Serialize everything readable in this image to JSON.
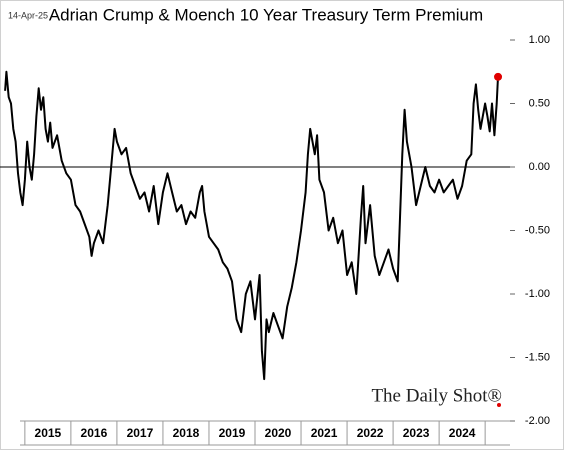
{
  "chart_data": {
    "type": "line",
    "title": "Adrian Crump & Moench 10 Year Treasury Term Premium",
    "date_label": "14-Apr-25",
    "watermark": "The Daily Shot®",
    "categories": [
      "2015",
      "2016",
      "2017",
      "2018",
      "2019",
      "2020",
      "2021",
      "2022",
      "2023",
      "2024"
    ],
    "xlim": [
      2014.46,
      2025.54
    ],
    "ylim": [
      -2,
      1
    ],
    "yticks": [
      {
        "value": 1,
        "label": "1.00"
      },
      {
        "value": 0.5,
        "label": "0.50"
      },
      {
        "value": 0,
        "label": "0.00"
      },
      {
        "value": -0.5,
        "label": "-0.50"
      },
      {
        "value": -1,
        "label": "-1.00"
      },
      {
        "value": -1.5,
        "label": "-1.50"
      },
      {
        "value": -2,
        "label": "-2.00"
      }
    ],
    "marker_color": "#e00000",
    "series": [
      {
        "name": "Term Premium",
        "color": "#000000",
        "x": [
          2014.57,
          2014.6,
          2014.65,
          2014.7,
          2014.75,
          2014.8,
          2014.85,
          2014.9,
          2014.95,
          2015.0,
          2015.05,
          2015.1,
          2015.15,
          2015.2,
          2015.25,
          2015.3,
          2015.35,
          2015.4,
          2015.45,
          2015.5,
          2015.55,
          2015.6,
          2015.7,
          2015.8,
          2015.9,
          2016.0,
          2016.1,
          2016.2,
          2016.3,
          2016.4,
          2016.45,
          2016.5,
          2016.6,
          2016.7,
          2016.8,
          2016.9,
          2016.95,
          2017.0,
          2017.1,
          2017.2,
          2017.3,
          2017.4,
          2017.5,
          2017.6,
          2017.7,
          2017.8,
          2017.9,
          2018.0,
          2018.1,
          2018.2,
          2018.3,
          2018.4,
          2018.5,
          2018.6,
          2018.7,
          2018.8,
          2018.85,
          2018.9,
          2019.0,
          2019.1,
          2019.2,
          2019.3,
          2019.4,
          2019.5,
          2019.6,
          2019.7,
          2019.8,
          2019.9,
          2020.0,
          2020.1,
          2020.15,
          2020.2,
          2020.25,
          2020.3,
          2020.4,
          2020.5,
          2020.6,
          2020.7,
          2020.8,
          2020.9,
          2021.0,
          2021.1,
          2021.15,
          2021.2,
          2021.3,
          2021.35,
          2021.4,
          2021.5,
          2021.6,
          2021.7,
          2021.8,
          2021.9,
          2022.0,
          2022.1,
          2022.2,
          2022.3,
          2022.35,
          2022.4,
          2022.5,
          2022.6,
          2022.7,
          2022.8,
          2022.9,
          2023.0,
          2023.1,
          2023.15,
          2023.2,
          2023.25,
          2023.3,
          2023.4,
          2023.5,
          2023.6,
          2023.7,
          2023.8,
          2023.9,
          2024.0,
          2024.1,
          2024.2,
          2024.3,
          2024.4,
          2024.5,
          2024.6,
          2024.7,
          2024.75,
          2024.8,
          2024.85,
          2024.9,
          2025.0,
          2025.05,
          2025.1,
          2025.15,
          2025.2,
          2025.25,
          2025.28
        ],
        "values": [
          0.6,
          0.75,
          0.55,
          0.5,
          0.3,
          0.2,
          -0.05,
          -0.2,
          -0.3,
          -0.1,
          0.2,
          0.0,
          -0.1,
          0.1,
          0.4,
          0.62,
          0.45,
          0.55,
          0.3,
          0.2,
          0.35,
          0.15,
          0.25,
          0.05,
          -0.05,
          -0.1,
          -0.3,
          -0.35,
          -0.45,
          -0.55,
          -0.7,
          -0.6,
          -0.5,
          -0.6,
          -0.3,
          0.1,
          0.3,
          0.2,
          0.1,
          0.15,
          -0.05,
          -0.15,
          -0.25,
          -0.2,
          -0.35,
          -0.15,
          -0.45,
          -0.2,
          -0.05,
          -0.2,
          -0.35,
          -0.3,
          -0.45,
          -0.35,
          -0.4,
          -0.2,
          -0.15,
          -0.35,
          -0.55,
          -0.6,
          -0.65,
          -0.75,
          -0.8,
          -0.9,
          -1.2,
          -1.3,
          -1.0,
          -0.9,
          -1.2,
          -0.85,
          -1.45,
          -1.67,
          -1.2,
          -1.3,
          -1.15,
          -1.25,
          -1.35,
          -1.1,
          -0.95,
          -0.75,
          -0.5,
          -0.2,
          0.1,
          0.3,
          0.1,
          0.25,
          -0.1,
          -0.2,
          -0.5,
          -0.4,
          -0.6,
          -0.5,
          -0.85,
          -0.75,
          -1.0,
          -0.4,
          -0.15,
          -0.6,
          -0.3,
          -0.7,
          -0.85,
          -0.75,
          -0.65,
          -0.8,
          -0.9,
          -0.4,
          0.1,
          0.45,
          0.2,
          0.0,
          -0.3,
          -0.15,
          0.0,
          -0.15,
          -0.2,
          -0.1,
          -0.2,
          -0.15,
          -0.1,
          -0.25,
          -0.15,
          0.05,
          0.1,
          0.5,
          0.65,
          0.45,
          0.3,
          0.5,
          0.4,
          0.28,
          0.5,
          0.25,
          0.5,
          0.71
        ]
      }
    ]
  }
}
